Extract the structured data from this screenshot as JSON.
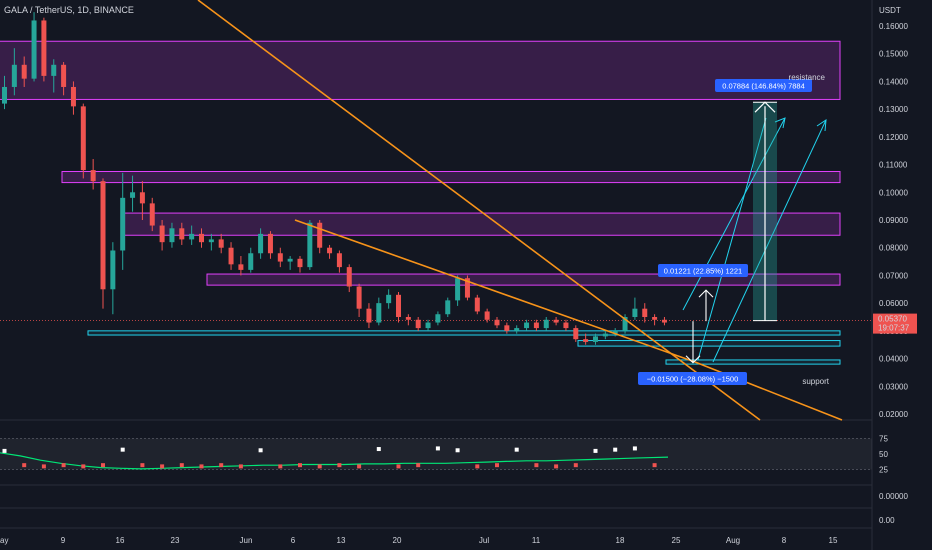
{
  "header": {
    "symbol": "GALA / TetherUS, 1D, BINANCE",
    "currency": "USDT"
  },
  "price_scale": {
    "ticks": [
      "0.16000",
      "0.15000",
      "0.14000",
      "0.13000",
      "0.12000",
      "0.11000",
      "0.10000",
      "0.09000",
      "0.08000",
      "0.07000",
      "0.06000",
      "0.05000",
      "0.04000",
      "0.03000",
      "0.02000"
    ],
    "current_price": "0.05370",
    "countdown": "19:07:37"
  },
  "time_axis": {
    "labels": [
      "ay",
      "9",
      "16",
      "23",
      "Jun",
      "6",
      "13",
      "20",
      "Jul",
      "11",
      "18",
      "25",
      "Aug",
      "8",
      "15"
    ]
  },
  "oscillator": {
    "ticks": [
      "75",
      "50",
      "25"
    ],
    "sub_ticks": [
      "0.00000",
      "0.00"
    ]
  },
  "annotations": {
    "resistance": "resistance",
    "support": "support",
    "up_big": "0.07884 (146.84%) 7884",
    "up_small": "0.01221 (22.85%) 1221",
    "down": "−0.01500 (−28.08%) −1500"
  },
  "colors": {
    "background": "#131722",
    "bull": "#26a69a",
    "bear": "#ef5350",
    "zone": "#e040fb",
    "trendline": "#f7931a",
    "support_line": "#22d3ee",
    "oscillator_line": "#00e676",
    "label_bg": "#2962ff"
  },
  "chart_data": {
    "type": "candlestick",
    "title": "GALA / TetherUS, 1D, BINANCE",
    "ylabel": "USDT",
    "ylim": [
      0.02,
      0.16
    ],
    "resistance_zones": [
      [
        0.1335,
        0.1545
      ],
      [
        0.1035,
        0.1075
      ],
      [
        0.0845,
        0.0925
      ],
      [
        0.0665,
        0.0705
      ]
    ],
    "support_zones": [
      [
        0.0485,
        0.05
      ],
      [
        0.0445,
        0.0465
      ],
      [
        0.038,
        0.0395
      ]
    ],
    "candles": [
      [
        0.132,
        0.142,
        0.13,
        0.138
      ],
      [
        0.138,
        0.152,
        0.135,
        0.146
      ],
      [
        0.146,
        0.149,
        0.138,
        0.141
      ],
      [
        0.141,
        0.165,
        0.14,
        0.162
      ],
      [
        0.162,
        0.163,
        0.14,
        0.142
      ],
      [
        0.142,
        0.148,
        0.136,
        0.146
      ],
      [
        0.146,
        0.147,
        0.135,
        0.138
      ],
      [
        0.138,
        0.14,
        0.128,
        0.131
      ],
      [
        0.131,
        0.132,
        0.105,
        0.108
      ],
      [
        0.108,
        0.112,
        0.101,
        0.104
      ],
      [
        0.104,
        0.105,
        0.058,
        0.065
      ],
      [
        0.065,
        0.082,
        0.056,
        0.079
      ],
      [
        0.079,
        0.107,
        0.072,
        0.098
      ],
      [
        0.098,
        0.106,
        0.093,
        0.1
      ],
      [
        0.1,
        0.104,
        0.09,
        0.096
      ],
      [
        0.096,
        0.098,
        0.086,
        0.088
      ],
      [
        0.088,
        0.09,
        0.079,
        0.082
      ],
      [
        0.082,
        0.089,
        0.08,
        0.087
      ],
      [
        0.087,
        0.089,
        0.081,
        0.083
      ],
      [
        0.083,
        0.088,
        0.081,
        0.085
      ],
      [
        0.085,
        0.087,
        0.08,
        0.082
      ],
      [
        0.082,
        0.085,
        0.079,
        0.083
      ],
      [
        0.083,
        0.085,
        0.078,
        0.08
      ],
      [
        0.08,
        0.082,
        0.072,
        0.074
      ],
      [
        0.074,
        0.077,
        0.07,
        0.072
      ],
      [
        0.072,
        0.08,
        0.071,
        0.078
      ],
      [
        0.078,
        0.087,
        0.076,
        0.085
      ],
      [
        0.085,
        0.086,
        0.076,
        0.078
      ],
      [
        0.078,
        0.08,
        0.073,
        0.075
      ],
      [
        0.075,
        0.077,
        0.072,
        0.076
      ],
      [
        0.076,
        0.077,
        0.071,
        0.073
      ],
      [
        0.073,
        0.09,
        0.072,
        0.089
      ],
      [
        0.089,
        0.09,
        0.078,
        0.08
      ],
      [
        0.08,
        0.081,
        0.076,
        0.078
      ],
      [
        0.078,
        0.079,
        0.071,
        0.073
      ],
      [
        0.073,
        0.074,
        0.064,
        0.066
      ],
      [
        0.066,
        0.067,
        0.055,
        0.058
      ],
      [
        0.058,
        0.06,
        0.051,
        0.053
      ],
      [
        0.053,
        0.062,
        0.052,
        0.06
      ],
      [
        0.06,
        0.065,
        0.058,
        0.063
      ],
      [
        0.063,
        0.064,
        0.053,
        0.055
      ],
      [
        0.055,
        0.056,
        0.052,
        0.054
      ],
      [
        0.054,
        0.055,
        0.05,
        0.051
      ],
      [
        0.051,
        0.054,
        0.05,
        0.053
      ],
      [
        0.053,
        0.057,
        0.052,
        0.056
      ],
      [
        0.056,
        0.062,
        0.055,
        0.061
      ],
      [
        0.061,
        0.07,
        0.059,
        0.069
      ],
      [
        0.069,
        0.07,
        0.061,
        0.062
      ],
      [
        0.062,
        0.063,
        0.056,
        0.057
      ],
      [
        0.057,
        0.058,
        0.053,
        0.054
      ],
      [
        0.054,
        0.055,
        0.051,
        0.052
      ],
      [
        0.052,
        0.053,
        0.049,
        0.05
      ],
      [
        0.05,
        0.052,
        0.049,
        0.051
      ],
      [
        0.051,
        0.054,
        0.05,
        0.053
      ],
      [
        0.053,
        0.054,
        0.05,
        0.051
      ],
      [
        0.051,
        0.055,
        0.05,
        0.054
      ],
      [
        0.054,
        0.055,
        0.052,
        0.053
      ],
      [
        0.053,
        0.054,
        0.05,
        0.051
      ],
      [
        0.051,
        0.052,
        0.046,
        0.047
      ],
      [
        0.047,
        0.049,
        0.045,
        0.046
      ],
      [
        0.046,
        0.049,
        0.045,
        0.048
      ],
      [
        0.048,
        0.05,
        0.047,
        0.049
      ],
      [
        0.049,
        0.051,
        0.048,
        0.05
      ],
      [
        0.05,
        0.056,
        0.049,
        0.055
      ],
      [
        0.055,
        0.062,
        0.054,
        0.058
      ],
      [
        0.058,
        0.06,
        0.053,
        0.055
      ],
      [
        0.055,
        0.056,
        0.052,
        0.054
      ],
      [
        0.054,
        0.055,
        0.052,
        0.053
      ]
    ],
    "oscillator": {
      "ylim": [
        0,
        100
      ],
      "line": [
        52,
        47,
        40,
        35,
        31,
        28,
        27,
        26,
        27,
        28,
        29,
        30,
        31,
        32,
        32,
        33,
        33,
        33,
        34,
        34,
        35,
        35,
        35,
        36,
        37,
        38,
        39,
        39,
        40,
        41,
        42,
        43,
        44,
        45
      ]
    }
  }
}
